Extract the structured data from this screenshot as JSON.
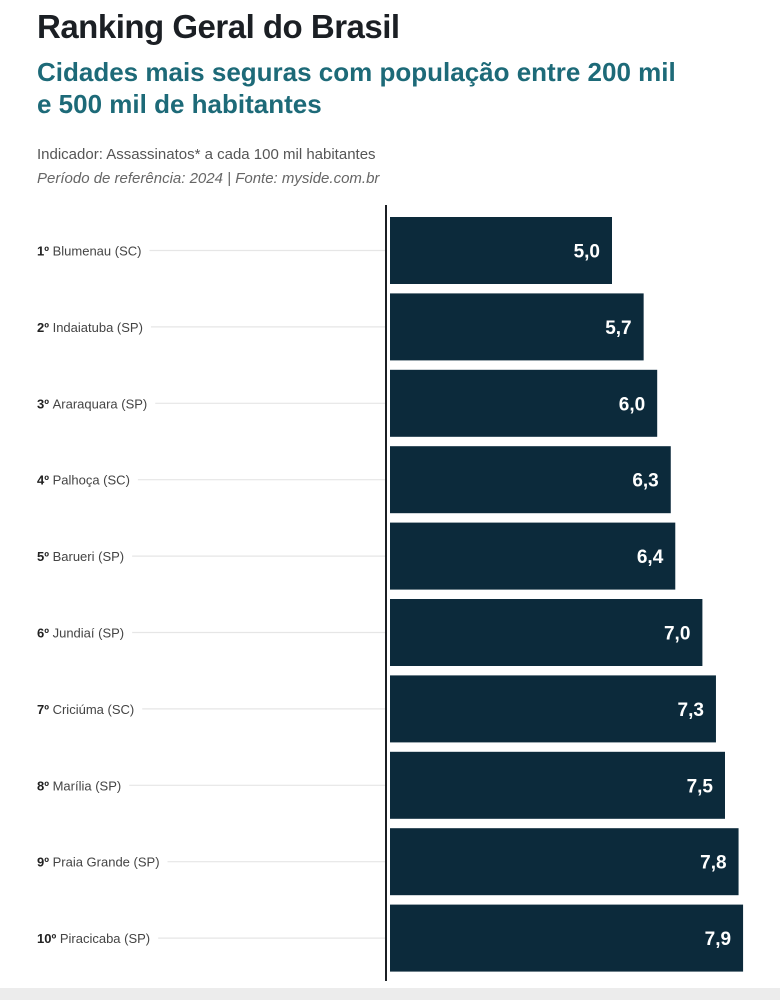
{
  "header": {
    "title": "Ranking Geral do Brasil",
    "subtitle": "Cidades mais seguras com população entre 200 mil e 500 mil de habitantes",
    "indicator": "Indicador: Assassinatos* a cada 100 mil habitantes",
    "period": "Período de referência: 2024 | Fonte: myside.com.br"
  },
  "chart_data": {
    "type": "bar",
    "orientation": "horizontal",
    "title": "Ranking Geral do Brasil",
    "xlabel": "",
    "ylabel": "",
    "xlim": [
      0,
      8
    ],
    "grid": false,
    "bar_color": "#0c2a3b",
    "ranks": [
      "1º",
      "2º",
      "3º",
      "4º",
      "5º",
      "6º",
      "7º",
      "8º",
      "9º",
      "10º"
    ],
    "categories": [
      "Blumenau (SC)",
      "Indaiatuba (SP)",
      "Araraquara (SP)",
      "Palhoça (SC)",
      "Barueri (SP)",
      "Jundiaí (SP)",
      "Criciúma (SC)",
      "Marília (SP)",
      "Praia Grande (SP)",
      "Piracicaba (SP)"
    ],
    "values": [
      5.0,
      5.7,
      6.0,
      6.3,
      6.4,
      7.0,
      7.3,
      7.5,
      7.8,
      7.9
    ],
    "labels": [
      "5,0",
      "5,7",
      "6,0",
      "6,3",
      "6,4",
      "7,0",
      "7,3",
      "7,5",
      "7,8",
      "7,9"
    ]
  }
}
